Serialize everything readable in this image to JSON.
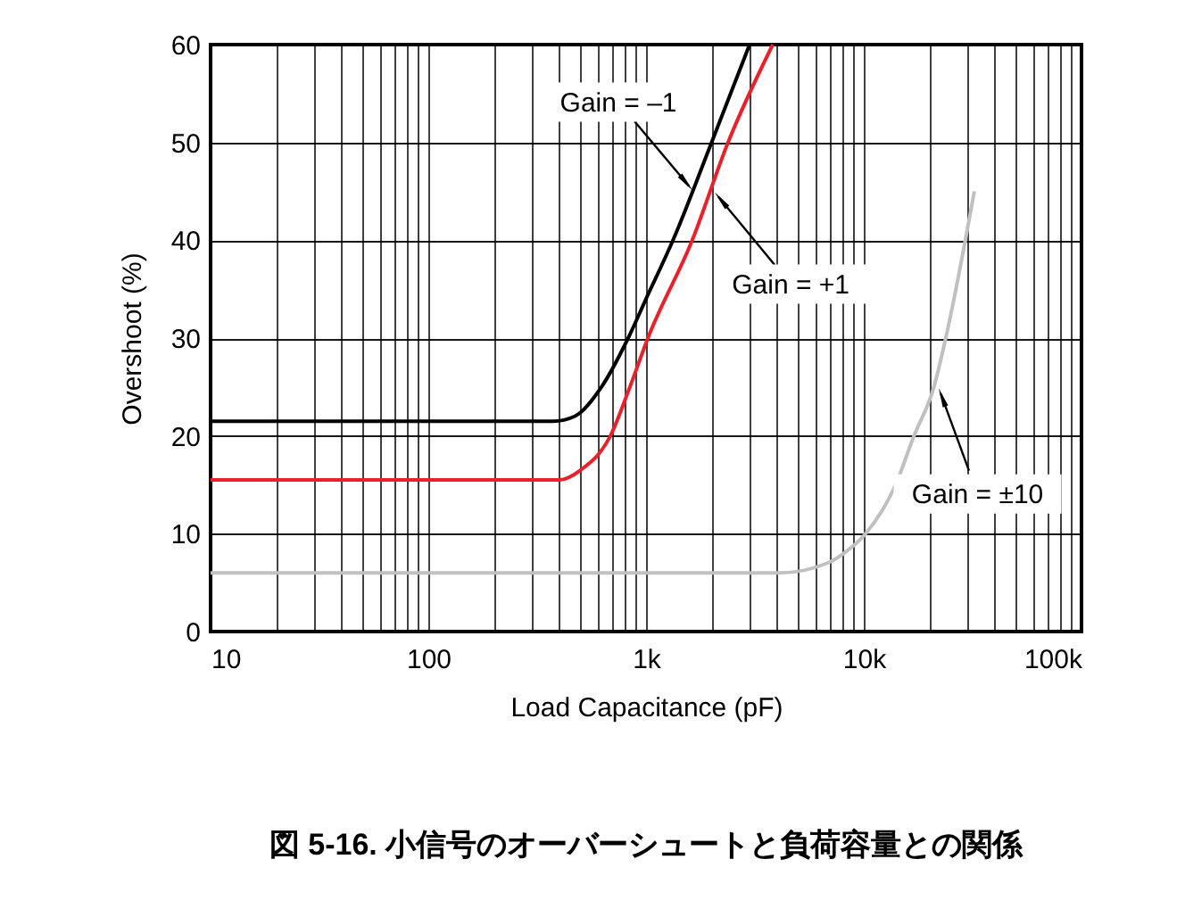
{
  "chart_data": {
    "type": "line",
    "title": "図 5-16. 小信号のオーバーシュートと負荷容量との関係",
    "xlabel": "Load Capacitance (pF)",
    "ylabel": "Overshoot (%)",
    "log": "x",
    "xlim": [
      10,
      100000
    ],
    "ylim": [
      0,
      60
    ],
    "xticks": [
      {
        "value": 10,
        "label": "10"
      },
      {
        "value": 20,
        "label": null
      },
      {
        "value": 30,
        "label": null
      },
      {
        "value": 40,
        "label": null
      },
      {
        "value": 50,
        "label": null
      },
      {
        "value": 60,
        "label": null
      },
      {
        "value": 70,
        "label": null
      },
      {
        "value": 80,
        "label": null
      },
      {
        "value": 90,
        "label": null
      },
      {
        "value": 100,
        "label": "100"
      },
      {
        "value": 200,
        "label": null
      },
      {
        "value": 300,
        "label": null
      },
      {
        "value": 400,
        "label": null
      },
      {
        "value": 500,
        "label": null
      },
      {
        "value": 600,
        "label": null
      },
      {
        "value": 700,
        "label": null
      },
      {
        "value": 800,
        "label": null
      },
      {
        "value": 900,
        "label": null
      },
      {
        "value": 1000,
        "label": "1k"
      },
      {
        "value": 2000,
        "label": null
      },
      {
        "value": 3000,
        "label": null
      },
      {
        "value": 4000,
        "label": null
      },
      {
        "value": 5000,
        "label": null
      },
      {
        "value": 6000,
        "label": null
      },
      {
        "value": 7000,
        "label": null
      },
      {
        "value": 8000,
        "label": null
      },
      {
        "value": 9000,
        "label": null
      },
      {
        "value": 10000,
        "label": "10k"
      },
      {
        "value": 20000,
        "label": null
      },
      {
        "value": 30000,
        "label": null
      },
      {
        "value": 40000,
        "label": null
      },
      {
        "value": 50000,
        "label": null
      },
      {
        "value": 60000,
        "label": null
      },
      {
        "value": 70000,
        "label": null
      },
      {
        "value": 80000,
        "label": null
      },
      {
        "value": 90000,
        "label": null
      },
      {
        "value": 100000,
        "label": "100k"
      }
    ],
    "yticks": [
      0,
      10,
      20,
      30,
      40,
      50,
      60
    ],
    "grid": true,
    "marker": "none",
    "line_style": "solid",
    "series": [
      {
        "color": "#000000",
        "x": [
          10,
          375,
          470,
          624,
          828,
          1000,
          1330,
          2000,
          2990
        ],
        "values": [
          21.5,
          21.5,
          22,
          25,
          30,
          34,
          40,
          50,
          60
        ]
      },
      {
        "color": "#e8212b",
        "x": [
          10,
          400,
          500,
          686,
          843,
          1020,
          1630,
          2380,
          3820
        ],
        "values": [
          15.5,
          15.5,
          16.5,
          20,
          25,
          30,
          40,
          50,
          60
        ]
      },
      {
        "color": "#c0c0c0",
        "x": [
          10,
          4120,
          6800,
          8100,
          10200,
          14000,
          17000,
          21000,
          23800,
          32200
        ],
        "values": [
          6,
          6,
          7,
          8,
          10,
          15,
          20,
          25,
          30,
          45
        ]
      }
    ],
    "annotations": [
      {
        "text": "Gain = –1",
        "x": 1650,
        "y": 45
      },
      {
        "text": "Gain = +1",
        "x": 2050,
        "y": 45
      },
      {
        "text": "Gain = ±10",
        "x": 22000,
        "y": 25
      }
    ]
  }
}
